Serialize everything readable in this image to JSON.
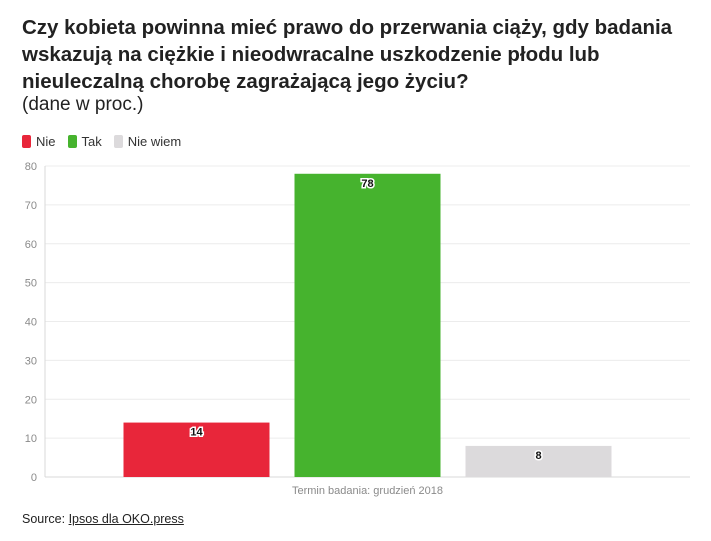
{
  "chart_data": {
    "type": "bar",
    "title": "Czy kobieta powinna mieć prawo do przerwania ciąży, gdy badania wskazują na ciężkie i nieodwracalne uszkodzenie płodu lub nieuleczalną chorobę zagrażającą jego życiu?",
    "subtitle": "(dane w proc.)",
    "xlabel": "Termin badania: grudzień 2018",
    "ylabel": "",
    "ylim": [
      0,
      80
    ],
    "yticks": [
      0,
      10,
      20,
      30,
      40,
      50,
      60,
      70,
      80
    ],
    "grid": true,
    "legend_position": "top-left",
    "series": [
      {
        "name": "Nie",
        "values": [
          14
        ],
        "color": "#e8263a"
      },
      {
        "name": "Tak",
        "values": [
          78
        ],
        "color": "#46b32e"
      },
      {
        "name": "Nie wiem",
        "values": [
          8
        ],
        "color": "#dcdadc"
      }
    ]
  },
  "source": {
    "prefix": "Source: ",
    "link_text": "Ipsos dla OKO.press"
  }
}
